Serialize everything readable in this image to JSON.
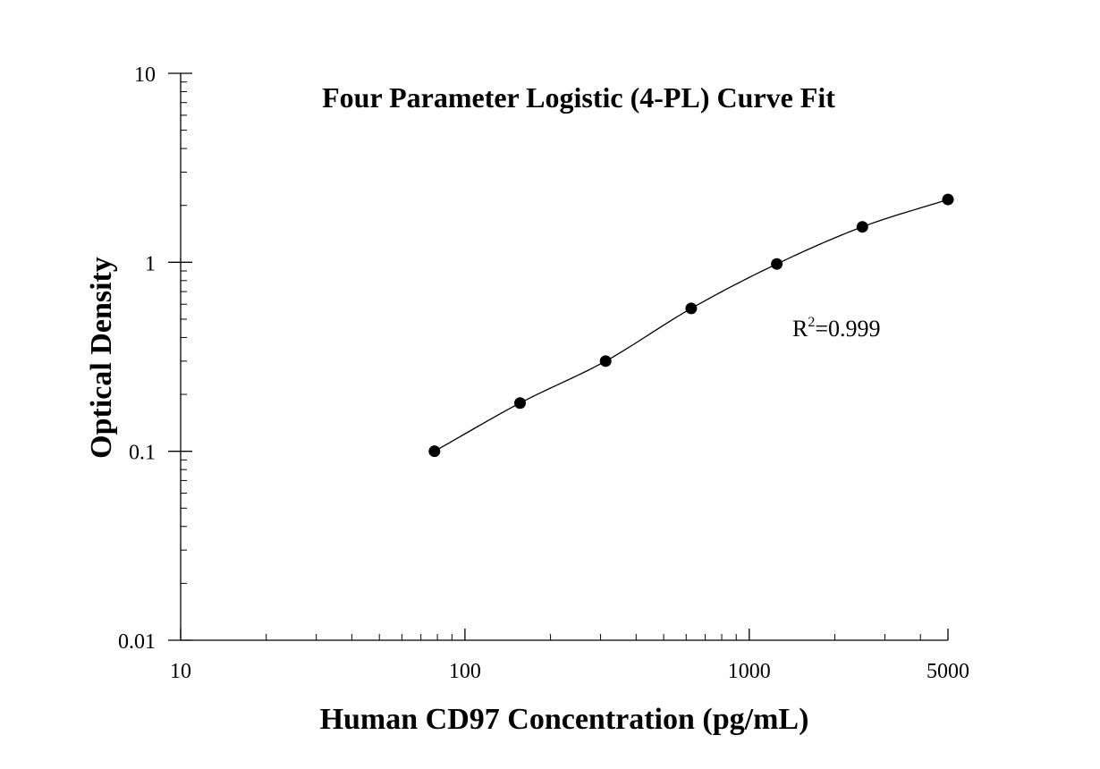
{
  "chart_data": {
    "type": "scatter",
    "title": "Four Parameter Logistic (4-PL) Curve Fit",
    "xlabel": "Human CD97 Concentration (pg/mL)",
    "ylabel": "Optical Density",
    "x_scale": "log",
    "y_scale": "log",
    "xlim": [
      10,
      5000
    ],
    "ylim": [
      0.01,
      10
    ],
    "x_ticks": [
      {
        "value": 10,
        "label": "10"
      },
      {
        "value": 100,
        "label": "100"
      },
      {
        "value": 1000,
        "label": "1000"
      },
      {
        "value": 5000,
        "label": "5000"
      }
    ],
    "y_ticks": [
      {
        "value": 0.01,
        "label": "0.01"
      },
      {
        "value": 0.1,
        "label": "0.1"
      },
      {
        "value": 1,
        "label": "1"
      },
      {
        "value": 10,
        "label": "10"
      }
    ],
    "series": [
      {
        "points": [
          {
            "x": 78.125,
            "y": 0.1
          },
          {
            "x": 156.25,
            "y": 0.18
          },
          {
            "x": 312.5,
            "y": 0.3
          },
          {
            "x": 625,
            "y": 0.57
          },
          {
            "x": 1250,
            "y": 0.98
          },
          {
            "x": 2500,
            "y": 1.54
          },
          {
            "x": 5000,
            "y": 2.15
          }
        ],
        "color": "#000000"
      }
    ],
    "annotation": {
      "base": "R",
      "sup": "2",
      "rest": "=0.999"
    },
    "grid": false,
    "legend": "none",
    "fit": "4-PL"
  }
}
